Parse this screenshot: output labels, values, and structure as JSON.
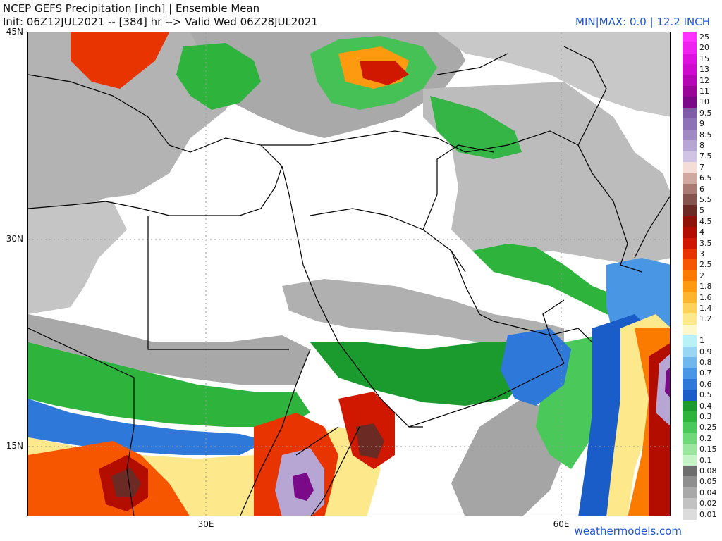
{
  "header": {
    "title": "NCEP GEFS Precipitation [inch] | Ensemble Mean",
    "init_line": "Init: 06Z12JUL2021 -- [384] hr --> Valid Wed 06Z28JUL2021",
    "minmax": "MIN|MAX: 0.0 | 12.2 INCH"
  },
  "axes": {
    "lat_labels": [
      "45N",
      "30N",
      "15N"
    ],
    "lon_labels": [
      "30E",
      "60E"
    ]
  },
  "footer": {
    "credit": "weathermodels.com"
  },
  "legend": {
    "units": "inch",
    "items": [
      {
        "label": "25",
        "color": "#ff33ff"
      },
      {
        "label": "20",
        "color": "#ee22ee"
      },
      {
        "label": "15",
        "color": "#dd11dd"
      },
      {
        "label": "13",
        "color": "#cc0bcc"
      },
      {
        "label": "12",
        "color": "#b308b3"
      },
      {
        "label": "11",
        "color": "#990799"
      },
      {
        "label": "10",
        "color": "#7a0a88"
      },
      {
        "label": "9.5",
        "color": "#7e5ca8"
      },
      {
        "label": "9",
        "color": "#8e72b6"
      },
      {
        "label": "8.5",
        "color": "#a18ac4"
      },
      {
        "label": "8",
        "color": "#b7a5d3"
      },
      {
        "label": "7.5",
        "color": "#cfc4e3"
      },
      {
        "label": "7",
        "color": "#f3ddd6"
      },
      {
        "label": "6.5",
        "color": "#cfa9a0"
      },
      {
        "label": "6",
        "color": "#a97b72"
      },
      {
        "label": "5.5",
        "color": "#85544c"
      },
      {
        "label": "5",
        "color": "#6b2b24"
      },
      {
        "label": "4.5",
        "color": "#8e1208"
      },
      {
        "label": "4",
        "color": "#b30d00"
      },
      {
        "label": "3.5",
        "color": "#d01800"
      },
      {
        "label": "3",
        "color": "#e83400"
      },
      {
        "label": "2.5",
        "color": "#f65600"
      },
      {
        "label": "2",
        "color": "#fb7a00"
      },
      {
        "label": "1.8",
        "color": "#fd9a0f"
      },
      {
        "label": "1.6",
        "color": "#fdb52e"
      },
      {
        "label": "1.4",
        "color": "#fdd25a"
      },
      {
        "label": "1.2",
        "color": "#fde98c"
      },
      {
        "label": "",
        "color": "#fff8cc"
      },
      {
        "label": "1",
        "color": "#b9f1f7"
      },
      {
        "label": "0.9",
        "color": "#98d6f4"
      },
      {
        "label": "0.8",
        "color": "#6fb7ec"
      },
      {
        "label": "0.7",
        "color": "#4996e4"
      },
      {
        "label": "0.6",
        "color": "#2d78d8"
      },
      {
        "label": "0.5",
        "color": "#1a5cc8"
      },
      {
        "label": "0.4",
        "color": "#1b9a2e"
      },
      {
        "label": "0.3",
        "color": "#2eb33d"
      },
      {
        "label": "0.25",
        "color": "#4ac85a"
      },
      {
        "label": "0.2",
        "color": "#6fd97a"
      },
      {
        "label": "0.15",
        "color": "#9ae69f"
      },
      {
        "label": "0.1",
        "color": "#c6f3c6"
      },
      {
        "label": "0.08",
        "color": "#6e6e6e"
      },
      {
        "label": "0.05",
        "color": "#8e8e8e"
      },
      {
        "label": "0.04",
        "color": "#a9a9a9"
      },
      {
        "label": "0.02",
        "color": "#c2c2c2"
      },
      {
        "label": "0.01",
        "color": "#dcdcdc"
      }
    ]
  }
}
